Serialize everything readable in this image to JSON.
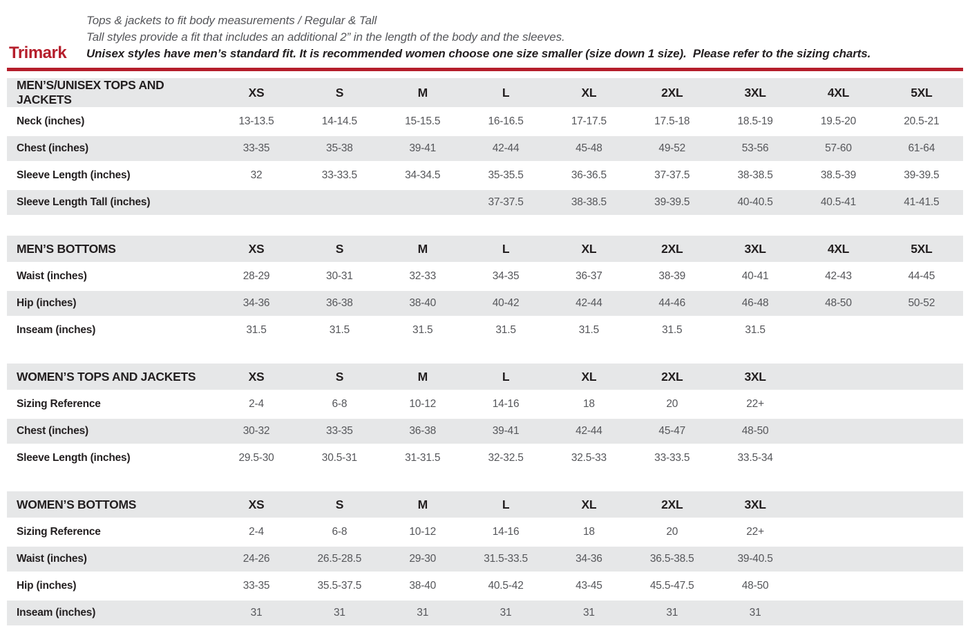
{
  "page": {
    "brand": "Trimark",
    "intro_line1": "Tops & jackets to fit body measurements / Regular & Tall",
    "intro_line2": "Tall styles provide a fit that includes an additional 2” in the length of the body and the sleeves.",
    "intro_line3": "Unisex styles have men’s standard fit. It is recommended women choose one size smaller (size down 1 size).  Please refer to the sizing charts."
  },
  "colors": {
    "brand_red": "#b51e2b",
    "rule_red": "#b51e2b",
    "stripe_gray": "#e6e7e8",
    "label_dark": "#231f20",
    "value_gray": "#55565a"
  },
  "tables": [
    {
      "id": "mens-unisex-tops-and-jackets",
      "title": "MEN’S/UNISEX TOPS AND JACKETS",
      "sizes": [
        "XS",
        "S",
        "M",
        "L",
        "XL",
        "2XL",
        "3XL",
        "4XL",
        "5XL"
      ],
      "rows": [
        {
          "label": "Neck (inches)",
          "values": [
            "13-13.5",
            "14-14.5",
            "15-15.5",
            "16-16.5",
            "17-17.5",
            "17.5-18",
            "18.5-19",
            "19.5-20",
            "20.5-21"
          ]
        },
        {
          "label": "Chest (inches)",
          "values": [
            "33-35",
            "35-38",
            "39-41",
            "42-44",
            "45-48",
            "49-52",
            "53-56",
            "57-60",
            "61-64"
          ]
        },
        {
          "label": "Sleeve Length (inches)",
          "values": [
            "32",
            "33-33.5",
            "34-34.5",
            "35-35.5",
            "36-36.5",
            "37-37.5",
            "38-38.5",
            "38.5-39",
            "39-39.5"
          ]
        },
        {
          "label": "Sleeve Length Tall (inches)",
          "values": [
            "",
            "",
            "",
            "37-37.5",
            "38-38.5",
            "39-39.5",
            "40-40.5",
            "40.5-41",
            "41-41.5"
          ]
        }
      ]
    },
    {
      "id": "mens-bottoms",
      "title": "MEN’S BOTTOMS",
      "sizes": [
        "XS",
        "S",
        "M",
        "L",
        "XL",
        "2XL",
        "3XL",
        "4XL",
        "5XL"
      ],
      "rows": [
        {
          "label": "Waist (inches)",
          "values": [
            "28-29",
            "30-31",
            "32-33",
            "34-35",
            "36-37",
            "38-39",
            "40-41",
            "42-43",
            "44-45"
          ]
        },
        {
          "label": "Hip (inches)",
          "values": [
            "34-36",
            "36-38",
            "38-40",
            "40-42",
            "42-44",
            "44-46",
            "46-48",
            "48-50",
            "50-52"
          ]
        },
        {
          "label": "Inseam (inches)",
          "values": [
            "31.5",
            "31.5",
            "31.5",
            "31.5",
            "31.5",
            "31.5",
            "31.5",
            "",
            ""
          ]
        }
      ]
    },
    {
      "id": "womens-tops-and-jackets",
      "title": "WOMEN’S TOPS AND JACKETS",
      "sizes": [
        "XS",
        "S",
        "M",
        "L",
        "XL",
        "2XL",
        "3XL"
      ],
      "rows": [
        {
          "label": "Sizing Reference",
          "values": [
            "2-4",
            "6-8",
            "10-12",
            "14-16",
            "18",
            "20",
            "22+",
            "",
            ""
          ]
        },
        {
          "label": "Chest (inches)",
          "values": [
            "30-32",
            "33-35",
            "36-38",
            "39-41",
            "42-44",
            "45-47",
            "48-50",
            "",
            ""
          ]
        },
        {
          "label": "Sleeve Length (inches)",
          "values": [
            "29.5-30",
            "30.5-31",
            "31-31.5",
            "32-32.5",
            "32.5-33",
            "33-33.5",
            "33.5-34",
            "",
            ""
          ]
        }
      ]
    },
    {
      "id": "womens-bottoms",
      "title": "WOMEN’S BOTTOMS",
      "sizes": [
        "XS",
        "S",
        "M",
        "L",
        "XL",
        "2XL",
        "3XL"
      ],
      "rows": [
        {
          "label": "Sizing Reference",
          "values": [
            "2-4",
            "6-8",
            "10-12",
            "14-16",
            "18",
            "20",
            "22+",
            "",
            ""
          ]
        },
        {
          "label": "Waist (inches)",
          "values": [
            "24-26",
            "26.5-28.5",
            "29-30",
            "31.5-33.5",
            "34-36",
            "36.5-38.5",
            "39-40.5",
            "",
            ""
          ]
        },
        {
          "label": "Hip (inches)",
          "values": [
            "33-35",
            "35.5-37.5",
            "38-40",
            "40.5-42",
            "43-45",
            "45.5-47.5",
            "48-50",
            "",
            ""
          ]
        },
        {
          "label": "Inseam (inches)",
          "values": [
            "31",
            "31",
            "31",
            "31",
            "31",
            "31",
            "31",
            "",
            ""
          ]
        }
      ]
    }
  ]
}
